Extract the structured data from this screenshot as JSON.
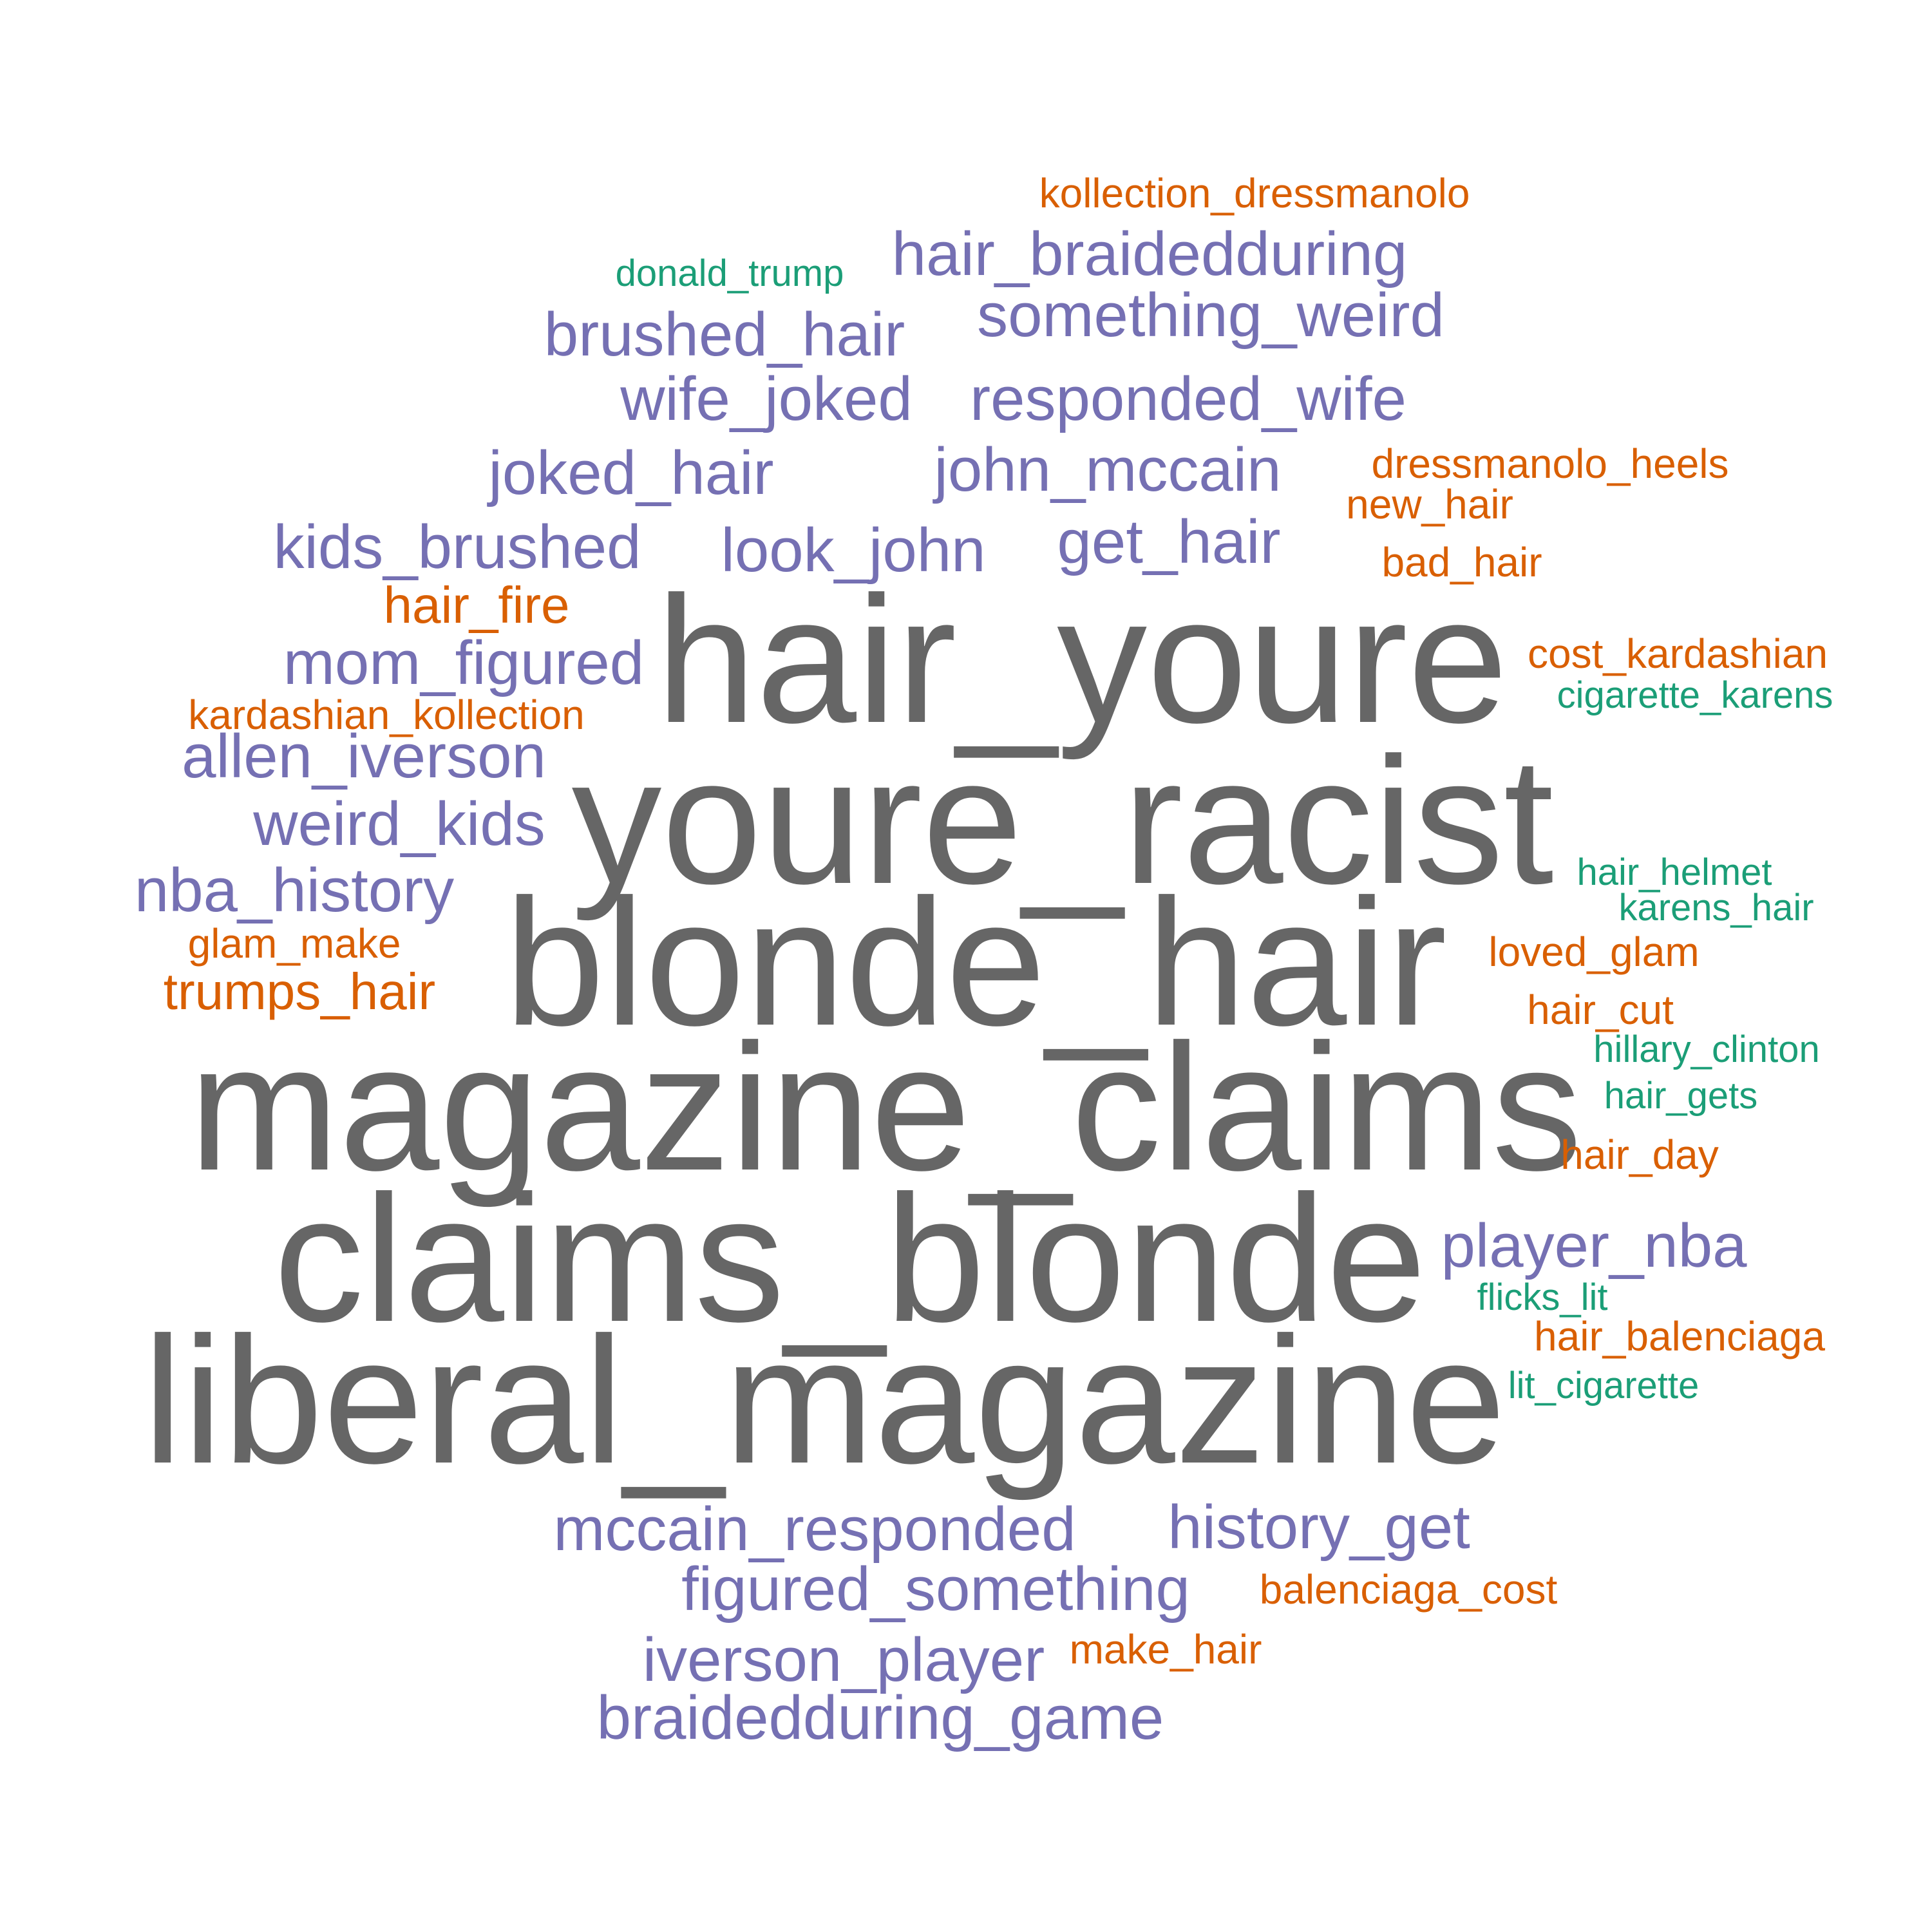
{
  "colors": {
    "gray": "#666666",
    "purple": "#7570b3",
    "orange": "#d95f02",
    "green": "#1b9e77"
  },
  "words": [
    {
      "text": "hair_youre",
      "weight": 1.0,
      "color": "#666666"
    },
    {
      "text": "youre_racist",
      "weight": 1.0,
      "color": "#666666"
    },
    {
      "text": "blonde_hair",
      "weight": 1.0,
      "color": "#666666"
    },
    {
      "text": "magazine_claims",
      "weight": 1.0,
      "color": "#666666"
    },
    {
      "text": "claims_blonde",
      "weight": 1.0,
      "color": "#666666"
    },
    {
      "text": "liberal_magazine",
      "weight": 1.0,
      "color": "#666666"
    },
    {
      "text": "hair_braidedduring",
      "weight": 0.5,
      "color": "#7570b3"
    },
    {
      "text": "something_weird",
      "weight": 0.5,
      "color": "#7570b3"
    },
    {
      "text": "brushed_hair",
      "weight": 0.5,
      "color": "#7570b3"
    },
    {
      "text": "wife_joked",
      "weight": 0.5,
      "color": "#7570b3"
    },
    {
      "text": "responded_wife",
      "weight": 0.5,
      "color": "#7570b3"
    },
    {
      "text": "joked_hair",
      "weight": 0.5,
      "color": "#7570b3"
    },
    {
      "text": "john_mccain",
      "weight": 0.5,
      "color": "#7570b3"
    },
    {
      "text": "kids_brushed",
      "weight": 0.5,
      "color": "#7570b3"
    },
    {
      "text": "look_john",
      "weight": 0.5,
      "color": "#7570b3"
    },
    {
      "text": "get_hair",
      "weight": 0.5,
      "color": "#7570b3"
    },
    {
      "text": "mom_figured",
      "weight": 0.5,
      "color": "#7570b3"
    },
    {
      "text": "allen_iverson",
      "weight": 0.5,
      "color": "#7570b3"
    },
    {
      "text": "weird_kids",
      "weight": 0.5,
      "color": "#7570b3"
    },
    {
      "text": "nba_history",
      "weight": 0.5,
      "color": "#7570b3"
    },
    {
      "text": "player_nba",
      "weight": 0.5,
      "color": "#7570b3"
    },
    {
      "text": "mccain_responded",
      "weight": 0.5,
      "color": "#7570b3"
    },
    {
      "text": "history_get",
      "weight": 0.5,
      "color": "#7570b3"
    },
    {
      "text": "figured_something",
      "weight": 0.5,
      "color": "#7570b3"
    },
    {
      "text": "iverson_player",
      "weight": 0.5,
      "color": "#7570b3"
    },
    {
      "text": "braidedduring_game",
      "weight": 0.5,
      "color": "#7570b3"
    },
    {
      "text": "kollection_dressmanolo",
      "weight": 0.33,
      "color": "#d95f02"
    },
    {
      "text": "dressmanolo_heels",
      "weight": 0.33,
      "color": "#d95f02"
    },
    {
      "text": "new_hair",
      "weight": 0.33,
      "color": "#d95f02"
    },
    {
      "text": "bad_hair",
      "weight": 0.33,
      "color": "#d95f02"
    },
    {
      "text": "hair_fire",
      "weight": 0.4,
      "color": "#d95f02"
    },
    {
      "text": "cost_kardashian",
      "weight": 0.33,
      "color": "#d95f02"
    },
    {
      "text": "kardashian_kollection",
      "weight": 0.33,
      "color": "#d95f02"
    },
    {
      "text": "glam_make",
      "weight": 0.33,
      "color": "#d95f02"
    },
    {
      "text": "trumps_hair",
      "weight": 0.4,
      "color": "#d95f02"
    },
    {
      "text": "loved_glam",
      "weight": 0.33,
      "color": "#d95f02"
    },
    {
      "text": "hair_cut",
      "weight": 0.33,
      "color": "#d95f02"
    },
    {
      "text": "hair_day",
      "weight": 0.33,
      "color": "#d95f02"
    },
    {
      "text": "hair_balenciaga",
      "weight": 0.33,
      "color": "#d95f02"
    },
    {
      "text": "balenciaga_cost",
      "weight": 0.33,
      "color": "#d95f02"
    },
    {
      "text": "make_hair",
      "weight": 0.33,
      "color": "#d95f02"
    },
    {
      "text": "donald_trump",
      "weight": 0.3,
      "color": "#1b9e77"
    },
    {
      "text": "cigarette_karens",
      "weight": 0.3,
      "color": "#1b9e77"
    },
    {
      "text": "hair_helmet",
      "weight": 0.3,
      "color": "#1b9e77"
    },
    {
      "text": "karens_hair",
      "weight": 0.3,
      "color": "#1b9e77"
    },
    {
      "text": "hillary_clinton",
      "weight": 0.3,
      "color": "#1b9e77"
    },
    {
      "text": "hair_gets",
      "weight": 0.3,
      "color": "#1b9e77"
    },
    {
      "text": "flicks_lit",
      "weight": 0.3,
      "color": "#1b9e77"
    },
    {
      "text": "lit_cigarette",
      "weight": 0.3,
      "color": "#1b9e77"
    }
  ]
}
